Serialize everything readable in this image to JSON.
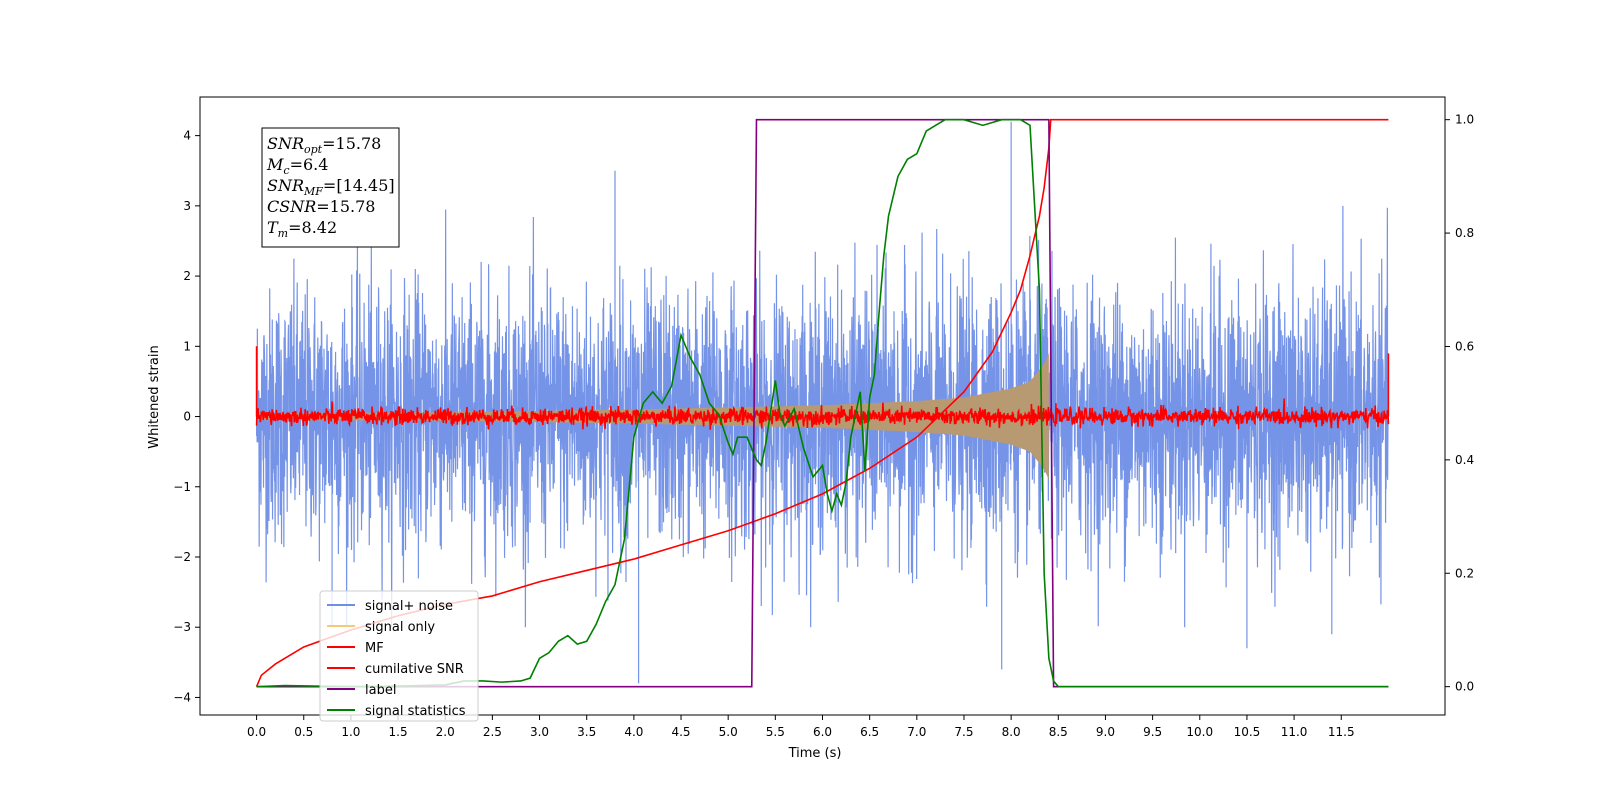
{
  "chart_data": {
    "type": "line",
    "title": "",
    "xlabel": "Time (s)",
    "ylabel": "Whitened strain",
    "xlim": [
      -0.6,
      12.6
    ],
    "ylim": [
      -4.25,
      4.55
    ],
    "y2lim": [
      -0.05,
      1.04
    ],
    "x_ticks": [
      0.0,
      0.5,
      1.0,
      1.5,
      2.0,
      2.5,
      3.0,
      3.5,
      4.0,
      4.5,
      5.0,
      5.5,
      6.0,
      6.5,
      7.0,
      7.5,
      8.0,
      8.5,
      9.0,
      9.5,
      10.0,
      10.5,
      11.0,
      11.5
    ],
    "x_tick_labels": [
      "0.0",
      "0.5",
      "1.0",
      "1.5",
      "2.0",
      "2.5",
      "3.0",
      "3.5",
      "4.0",
      "4.5",
      "5.0",
      "5.5",
      "6.0",
      "6.5",
      "7.0",
      "7.5",
      "8.0",
      "8.5",
      "9.0",
      "9.5",
      "10.0",
      "10.5",
      "11.0",
      "11.5"
    ],
    "y_ticks": [
      -4,
      -3,
      -2,
      -1,
      0,
      1,
      2,
      3,
      4
    ],
    "y_tick_labels": [
      "−4",
      "−3",
      "−2",
      "−1",
      "0",
      "1",
      "2",
      "3",
      "4"
    ],
    "y2_ticks": [
      0.0,
      0.2,
      0.4,
      0.6,
      0.8,
      1.0
    ],
    "y2_tick_labels": [
      "0.0",
      "0.2",
      "0.4",
      "0.6",
      "0.8",
      "1.0"
    ],
    "grid": false,
    "legend_position": "lower-left",
    "colors": {
      "signal_noise": "#6f8ee6",
      "signal_only": "#f5c97a",
      "overlap": "#b89a72",
      "mf": "#ff0000",
      "cumulative_snr": "#ff0000",
      "label": "#800080",
      "signal_statistics": "#008000"
    },
    "series": [
      {
        "name": "signal+ noise",
        "axis": "left",
        "style": "noise",
        "x_range": [
          0.0,
          12.0
        ],
        "std": 0.9,
        "notes_spikes": [
          [
            0.8,
            -3.0
          ],
          [
            3.8,
            3.5
          ],
          [
            4.05,
            -3.8
          ],
          [
            8.0,
            4.2
          ],
          [
            7.9,
            -3.6
          ],
          [
            10.5,
            -3.3
          ],
          [
            11.4,
            -3.1
          ]
        ]
      },
      {
        "name": "signal only",
        "axis": "left",
        "style": "chirp-envelope",
        "env_x": [
          0.0,
          2.0,
          4.0,
          5.0,
          6.0,
          7.0,
          7.5,
          8.0,
          8.2,
          8.35,
          8.4
        ],
        "env_y": [
          0.05,
          0.06,
          0.1,
          0.13,
          0.16,
          0.22,
          0.27,
          0.4,
          0.5,
          0.75,
          0.9
        ]
      },
      {
        "name": "MF",
        "axis": "left",
        "style": "noise-small",
        "x_range": [
          0.0,
          12.0
        ],
        "std": 0.06,
        "edge_spikes": [
          [
            0.0,
            1.0
          ],
          [
            12.0,
            0.9
          ]
        ]
      },
      {
        "name": "cumilative SNR",
        "axis": "right",
        "x": [
          0.0,
          0.05,
          0.2,
          0.5,
          1.0,
          1.5,
          2.0,
          2.5,
          3.0,
          3.5,
          4.0,
          4.5,
          5.0,
          5.5,
          6.0,
          6.5,
          7.0,
          7.5,
          7.8,
          8.0,
          8.1,
          8.2,
          8.3,
          8.35,
          8.4,
          8.42,
          12.0
        ],
        "y": [
          0.0,
          0.02,
          0.04,
          0.07,
          0.1,
          0.125,
          0.145,
          0.16,
          0.185,
          0.205,
          0.225,
          0.25,
          0.275,
          0.305,
          0.34,
          0.385,
          0.44,
          0.52,
          0.59,
          0.66,
          0.7,
          0.76,
          0.83,
          0.88,
          0.95,
          1.0,
          1.0
        ]
      },
      {
        "name": "label",
        "axis": "right",
        "x": [
          0.0,
          5.25,
          5.3,
          8.4,
          8.45,
          12.0
        ],
        "y": [
          0.0,
          0.0,
          1.0,
          1.0,
          0.0,
          0.0
        ]
      },
      {
        "name": "signal statistics",
        "axis": "right",
        "x": [
          0.0,
          0.3,
          0.6,
          1.0,
          1.5,
          2.0,
          2.2,
          2.4,
          2.6,
          2.8,
          2.9,
          3.0,
          3.1,
          3.2,
          3.3,
          3.4,
          3.5,
          3.6,
          3.7,
          3.8,
          3.9,
          4.0,
          4.05,
          4.1,
          4.2,
          4.3,
          4.4,
          4.5,
          4.6,
          4.7,
          4.8,
          4.9,
          5.0,
          5.05,
          5.1,
          5.2,
          5.25,
          5.3,
          5.35,
          5.4,
          5.5,
          5.55,
          5.6,
          5.7,
          5.8,
          5.9,
          6.0,
          6.05,
          6.1,
          6.15,
          6.2,
          6.25,
          6.3,
          6.35,
          6.4,
          6.45,
          6.5,
          6.55,
          6.6,
          6.65,
          6.7,
          6.8,
          6.9,
          7.0,
          7.1,
          7.2,
          7.3,
          7.5,
          7.7,
          7.9,
          8.1,
          8.2,
          8.3,
          8.35,
          8.4,
          8.45,
          8.5,
          8.6,
          12.0
        ],
        "y": [
          0.0,
          0.002,
          0.001,
          0.0,
          0.001,
          0.003,
          0.01,
          0.01,
          0.008,
          0.01,
          0.015,
          0.05,
          0.06,
          0.08,
          0.09,
          0.075,
          0.08,
          0.11,
          0.15,
          0.18,
          0.26,
          0.44,
          0.47,
          0.5,
          0.52,
          0.5,
          0.53,
          0.62,
          0.58,
          0.55,
          0.5,
          0.48,
          0.43,
          0.41,
          0.44,
          0.44,
          0.42,
          0.4,
          0.39,
          0.43,
          0.54,
          0.48,
          0.46,
          0.49,
          0.42,
          0.37,
          0.39,
          0.34,
          0.31,
          0.34,
          0.32,
          0.36,
          0.44,
          0.48,
          0.52,
          0.38,
          0.51,
          0.55,
          0.66,
          0.76,
          0.83,
          0.9,
          0.93,
          0.94,
          0.98,
          0.99,
          1.0,
          1.0,
          0.99,
          1.0,
          1.0,
          0.99,
          0.7,
          0.2,
          0.05,
          0.01,
          0.0,
          0.0,
          0.0
        ]
      }
    ],
    "annotation": {
      "position": "top-left",
      "lines": [
        {
          "main": "SNR",
          "sub": "opt",
          "rest": "=15.78"
        },
        {
          "main": "M",
          "sub": "c",
          "rest": "=6.4"
        },
        {
          "main": "SNR",
          "sub": "MF",
          "rest": "=[14.45]"
        },
        {
          "main": "CSNR",
          "sub": "",
          "rest": "=15.78"
        },
        {
          "main": "T",
          "sub": "m",
          "rest": "=8.42"
        }
      ]
    }
  }
}
